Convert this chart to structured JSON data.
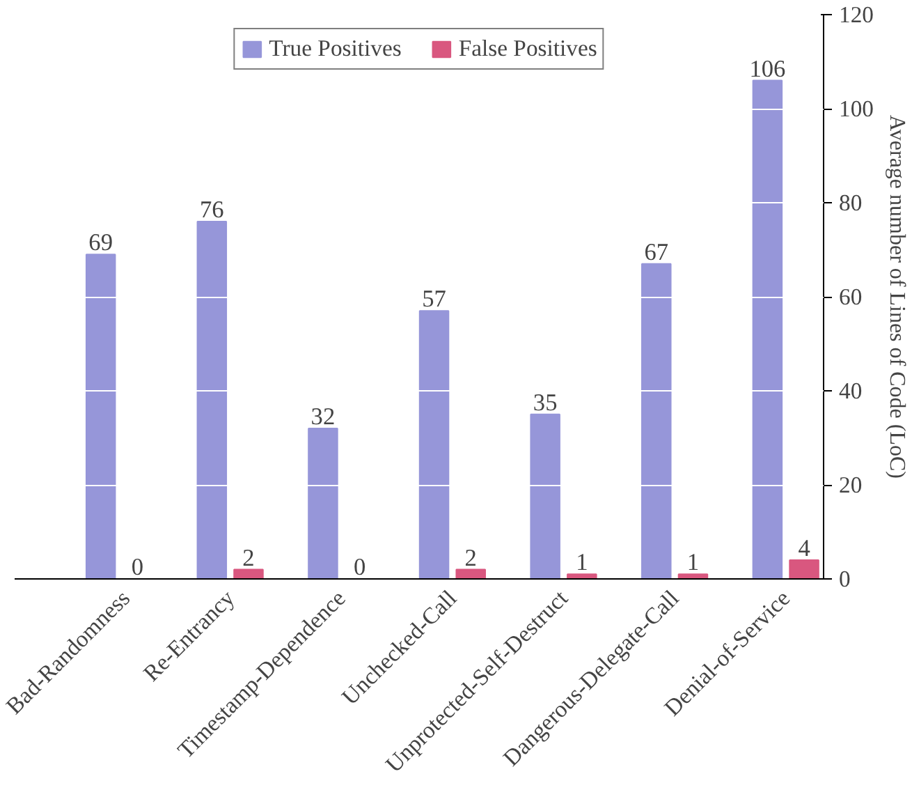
{
  "chart_data": {
    "type": "bar",
    "ylabel": "Average number of Lines of Code (LoC)",
    "categories": [
      "Bad-Randomness",
      "Re-Entrancy",
      "Timestamp-Dependence",
      "Unchecked-Call",
      "Unprotected-Self-Destruct",
      "Dangerous-Delegate-Call",
      "Denial-of-Service"
    ],
    "series": [
      {
        "name": "True Positives",
        "color": "#9696d9",
        "values": [
          69,
          76,
          32,
          57,
          35,
          67,
          106
        ]
      },
      {
        "name": "False Positives",
        "color": "#d9577f",
        "values": [
          0,
          2,
          0,
          2,
          1,
          1,
          4
        ]
      }
    ],
    "ylim": [
      0,
      120
    ],
    "yticks": [
      0,
      20,
      40,
      60,
      80,
      100,
      120
    ],
    "grid": "y",
    "legend": "top",
    "data_labels": true
  }
}
